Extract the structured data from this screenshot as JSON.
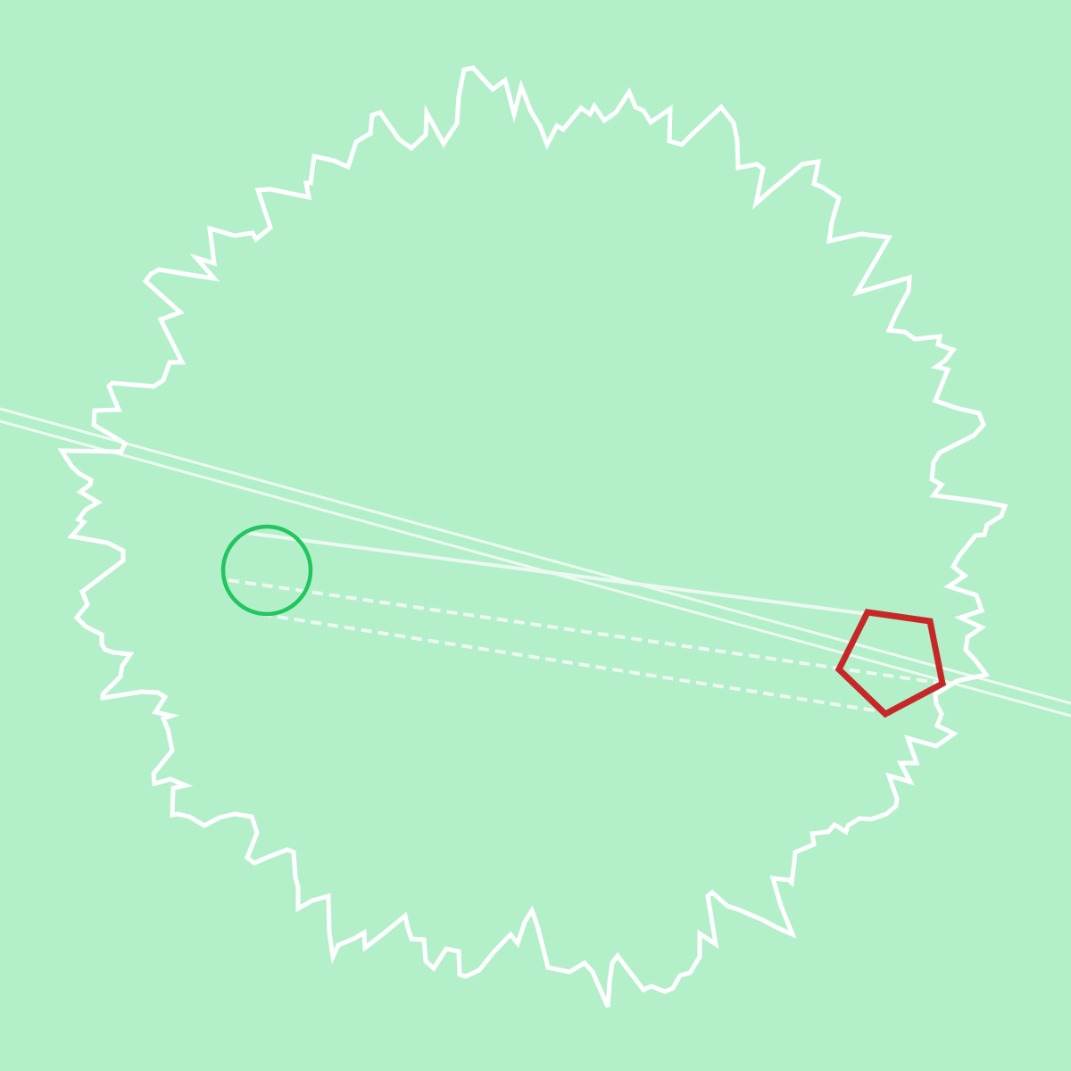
{
  "colors": {
    "background": "#b3f0ca",
    "outline": "#ffffff",
    "axis_line": "#eefaf2",
    "circle": "#22c55e",
    "pentagon": "#c62828",
    "guide_line": "#ecf8f1"
  },
  "shapes": {
    "boundary": {
      "kind": "jagged-closed-outline",
      "style": "solid",
      "icon": "starburst-outline"
    },
    "axis": {
      "kind": "double-line",
      "style": "solid"
    },
    "circle": {
      "kind": "circle",
      "style": "outline"
    },
    "pentagon": {
      "kind": "pentagon",
      "style": "outline"
    },
    "connectors": [
      {
        "from": "circle",
        "to": "pentagon",
        "style": "solid"
      },
      {
        "from": "circle",
        "to": "pentagon",
        "style": "dashed"
      },
      {
        "from": "circle",
        "to": "pentagon",
        "style": "dashed"
      }
    ]
  }
}
